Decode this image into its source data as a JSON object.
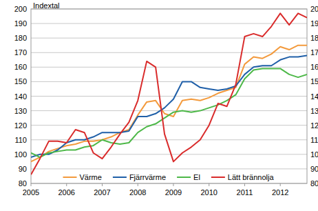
{
  "chart_data": {
    "type": "line",
    "y_label": "Indextal",
    "categories": [
      "2005",
      null,
      null,
      null,
      "2006",
      null,
      null,
      null,
      "2007",
      null,
      null,
      null,
      "2008",
      null,
      null,
      null,
      "2009",
      null,
      null,
      null,
      "2010",
      null,
      null,
      null,
      "2011",
      null,
      null,
      null,
      "2012",
      null,
      null,
      null
    ],
    "series": [
      {
        "name": "Värme",
        "color": "#f39a3c",
        "values": [
          95,
          98,
          102,
          104,
          106,
          107,
          109,
          109,
          110,
          112,
          115,
          117,
          127,
          136,
          137,
          128,
          126,
          137,
          138,
          137,
          139,
          142,
          144,
          146,
          162,
          167,
          166,
          169,
          174,
          172,
          175,
          175
        ]
      },
      {
        "name": "Fjärrvärme",
        "color": "#1f5fa8",
        "values": [
          98,
          100,
          100,
          103,
          108,
          110,
          110,
          112,
          115,
          115,
          115,
          116,
          126,
          126,
          128,
          132,
          138,
          150,
          150,
          146,
          145,
          144,
          145,
          147,
          155,
          160,
          161,
          161,
          165,
          167,
          167,
          168
        ]
      },
      {
        "name": "El",
        "color": "#4db848",
        "values": [
          101,
          98,
          101,
          102,
          103,
          103,
          105,
          106,
          110,
          108,
          107,
          108,
          115,
          119,
          121,
          125,
          129,
          130,
          129,
          130,
          132,
          134,
          137,
          141,
          152,
          158,
          159,
          159,
          159,
          155,
          153,
          155
        ]
      },
      {
        "name": "Lätt brännolja",
        "color": "#d92b2b",
        "values": [
          86,
          97,
          109,
          109,
          108,
          117,
          115,
          101,
          97,
          105,
          114,
          122,
          137,
          164,
          160,
          114,
          95,
          101,
          105,
          110,
          120,
          135,
          133,
          148,
          181,
          183,
          181,
          188,
          197,
          189,
          197,
          194
        ]
      }
    ],
    "ylim": [
      80,
      200
    ],
    "yticks": [
      80,
      90,
      100,
      110,
      120,
      130,
      140,
      150,
      160,
      170,
      180,
      190,
      200
    ],
    "grid": true,
    "legend": "bottom"
  }
}
